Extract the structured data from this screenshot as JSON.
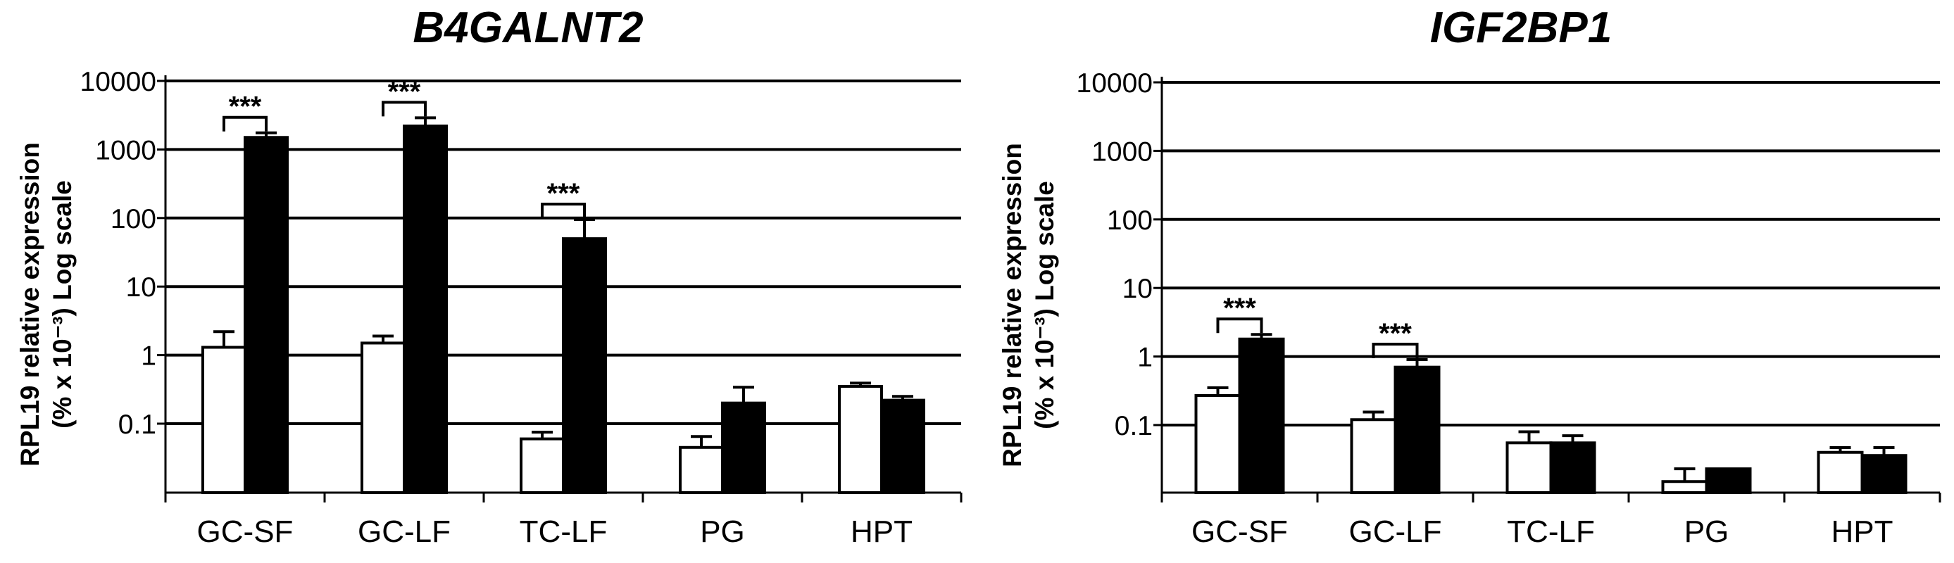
{
  "chart_data": [
    {
      "type": "bar",
      "title": "B4GALNT2",
      "ylabel": "RPL19 relative expression (% x 10⁻³) Log scale",
      "ylabel_line1": "RPL19 relative expression",
      "ylabel_line2": "(% x 10⁻³) Log scale",
      "yscale": "log",
      "ylim": [
        0.01,
        10000
      ],
      "yticks": [
        "10000",
        "1000",
        "100",
        "10",
        "1",
        "0.1"
      ],
      "grid": true,
      "categories": [
        "GC-SF",
        "GC-LF",
        "TC-LF",
        "PG",
        "HPT"
      ],
      "series": [
        {
          "color": "#ffffff",
          "values": [
            1.3,
            1.5,
            0.06,
            0.045,
            0.35
          ],
          "error": [
            2.2,
            1.9,
            0.075,
            0.065,
            0.39
          ]
        },
        {
          "color": "#000000",
          "values": [
            1500,
            2200,
            50,
            0.2,
            0.22
          ],
          "error": [
            1750,
            2900,
            95,
            0.34,
            0.25
          ]
        }
      ],
      "significance": [
        {
          "category": "GC-SF",
          "label": "***"
        },
        {
          "category": "GC-LF",
          "label": "***"
        },
        {
          "category": "TC-LF",
          "label": "***"
        }
      ]
    },
    {
      "type": "bar",
      "title": "IGF2BP1",
      "ylabel": "RPL19 relative expression (% x 10⁻³) Log scale",
      "ylabel_line1": "RPL19 relative expression",
      "ylabel_line2": "(% x 10⁻³) Log scale",
      "yscale": "log",
      "ylim": [
        0.01,
        10000
      ],
      "yticks": [
        "10000",
        "1000",
        "100",
        "10",
        "1",
        "0.1"
      ],
      "grid": true,
      "categories": [
        "GC-SF",
        "GC-LF",
        "TC-LF",
        "PG",
        "HPT"
      ],
      "series": [
        {
          "color": "#ffffff",
          "values": [
            0.27,
            0.12,
            0.055,
            0.015,
            0.04
          ],
          "error": [
            0.35,
            0.155,
            0.08,
            0.023,
            0.047
          ]
        },
        {
          "color": "#000000",
          "values": [
            1.8,
            0.7,
            0.055,
            0.023,
            0.036
          ],
          "error": [
            2.1,
            0.9,
            0.07,
            0.023,
            0.047
          ]
        }
      ],
      "significance": [
        {
          "category": "GC-SF",
          "label": "***"
        },
        {
          "category": "GC-LF",
          "label": "***"
        }
      ]
    }
  ]
}
